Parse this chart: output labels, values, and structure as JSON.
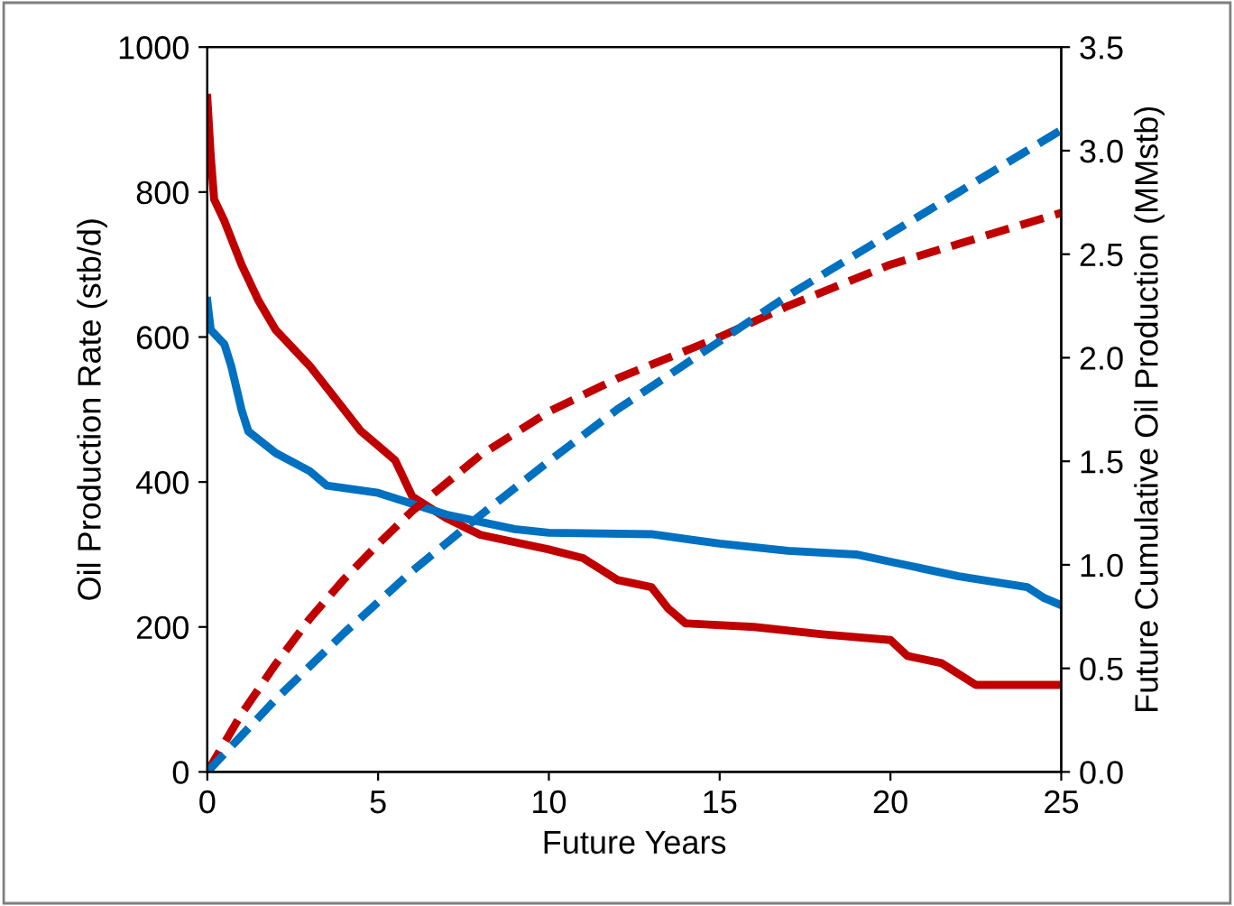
{
  "chart_data": {
    "type": "line",
    "xlabel": "Future Years",
    "ylabel": "Oil Production Rate (stb/d)",
    "y2label": "Future Cumulative Oil Production (MMstb)",
    "xlim": [
      0,
      25
    ],
    "xticks": [
      0,
      5,
      10,
      15,
      20,
      25
    ],
    "ylim": [
      0,
      1000
    ],
    "yticks": [
      0,
      200,
      400,
      600,
      800,
      1000
    ],
    "y2lim": [
      0,
      3.5
    ],
    "y2ticks": [
      {
        "value": 0,
        "label": "0.0"
      },
      {
        "value": 0.5,
        "label": "0.5"
      },
      {
        "value": 1,
        "label": "1.0"
      },
      {
        "value": 1.5,
        "label": "1.5"
      },
      {
        "value": 2,
        "label": "2.0"
      },
      {
        "value": 2.5,
        "label": "2.5"
      },
      {
        "value": 3,
        "label": "3.0"
      },
      {
        "value": 3.5,
        "label": "3.5"
      }
    ],
    "grid": false,
    "legend": false,
    "series": [
      {
        "color": "#c00000",
        "line_style": "solid",
        "x": [
          0,
          0.1,
          0.2,
          0.5,
          1,
          1.5,
          2,
          3,
          4,
          4.5,
          5,
          5.5,
          6,
          7,
          8,
          10,
          11,
          12,
          13,
          13.5,
          14,
          16,
          18,
          20,
          20.5,
          21.5,
          22,
          22.5,
          25
        ],
        "values": [
          930,
          850,
          790,
          760,
          700,
          650,
          610,
          560,
          500,
          470,
          450,
          430,
          380,
          350,
          327,
          307,
          295,
          265,
          255,
          225,
          205,
          200,
          190,
          182,
          160,
          150,
          135,
          120,
          120
        ]
      },
      {
        "color": "#0070c0",
        "line_style": "solid",
        "x": [
          0,
          0.1,
          0.5,
          0.7,
          1,
          1.2,
          2,
          3,
          3.5,
          5,
          6,
          7,
          8,
          9,
          10,
          13,
          15,
          17,
          19,
          20,
          22,
          24,
          24.5,
          25
        ],
        "values": [
          650,
          610,
          590,
          560,
          500,
          470,
          440,
          415,
          395,
          385,
          370,
          355,
          345,
          335,
          330,
          328,
          315,
          305,
          300,
          290,
          270,
          255,
          240,
          230
        ]
      },
      {
        "color": "#c00000",
        "line_style": "dashed",
        "axis": "y2",
        "x": [
          0,
          1,
          2,
          3,
          4,
          5,
          6,
          8,
          10,
          12,
          15,
          17,
          20,
          22,
          25
        ],
        "values": [
          0,
          0.28,
          0.52,
          0.74,
          0.93,
          1.1,
          1.26,
          1.53,
          1.74,
          1.9,
          2.1,
          2.25,
          2.45,
          2.55,
          2.7
        ]
      },
      {
        "color": "#0070c0",
        "line_style": "dashed",
        "axis": "y2",
        "x": [
          0,
          2,
          4,
          6,
          8,
          10,
          12,
          15,
          17,
          20,
          22,
          25
        ],
        "values": [
          0,
          0.35,
          0.67,
          0.97,
          1.24,
          1.5,
          1.75,
          2.08,
          2.3,
          2.6,
          2.8,
          3.1
        ]
      }
    ]
  }
}
